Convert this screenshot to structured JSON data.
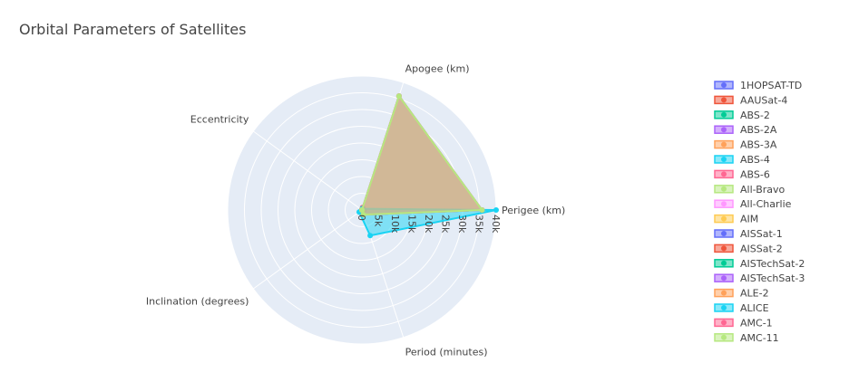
{
  "chart_data": {
    "type": "radar",
    "title": "Orbital Parameters of Satellites",
    "axes": [
      "Perigee (km)",
      "Apogee (km)",
      "Eccentricity",
      "Inclination (degrees)",
      "Period (minutes)"
    ],
    "radial_range": [
      0,
      40000
    ],
    "radial_ticks": [
      0,
      5000,
      10000,
      15000,
      20000,
      25000,
      30000,
      35000,
      40000
    ],
    "radial_tick_labels": [
      "0",
      "5k",
      "10k",
      "15k",
      "20k",
      "25k",
      "30k",
      "35k",
      "40k"
    ],
    "fill": "toself",
    "grid": true,
    "legend_position": "right",
    "series": [
      {
        "name": "1HOPSAT-TD",
        "color": "#636efa",
        "values": [
          700,
          720,
          0.001,
          97,
          98
        ]
      },
      {
        "name": "AAUSat-4",
        "color": "#ef553b",
        "values": [
          450,
          790,
          0.02,
          98,
          97
        ]
      },
      {
        "name": "ABS-2",
        "color": "#00cc96",
        "values": [
          35780,
          35790,
          0.0002,
          0.05,
          1436
        ]
      },
      {
        "name": "ABS-2A",
        "color": "#ab63fa",
        "values": [
          35780,
          35790,
          0.0001,
          0.03,
          1436
        ]
      },
      {
        "name": "ABS-3A",
        "color": "#ffa15a",
        "values": [
          35785,
          35788,
          0.0001,
          0.02,
          1436
        ]
      },
      {
        "name": "ABS-4",
        "color": "#19d3f3",
        "values": [
          35780,
          35790,
          0.0001,
          0.02,
          1436
        ]
      },
      {
        "name": "ABS-6",
        "color": "#ff6692",
        "values": [
          35782,
          35789,
          0.0001,
          0.03,
          1436
        ]
      },
      {
        "name": "All-Bravo",
        "color": "#b6e880",
        "values": [
          35786,
          35788,
          0.0001,
          0.02,
          1436
        ]
      },
      {
        "name": "All-Charlie",
        "color": "#ff97ff",
        "values": [
          35785,
          35787,
          0.0001,
          0.01,
          1436
        ]
      },
      {
        "name": "AIM",
        "color": "#fecb52",
        "values": [
          600,
          650,
          0.003,
          97,
          96
        ]
      },
      {
        "name": "AISSat-1",
        "color": "#636efa",
        "values": [
          620,
          640,
          0.001,
          98,
          97
        ]
      },
      {
        "name": "AISSat-2",
        "color": "#ef553b",
        "values": [
          600,
          620,
          0.001,
          98,
          97
        ]
      },
      {
        "name": "AISTechSat-2",
        "color": "#00cc96",
        "values": [
          500,
          520,
          0.001,
          97,
          95
        ]
      },
      {
        "name": "AISTechSat-3",
        "color": "#ab63fa",
        "values": [
          510,
          530,
          0.001,
          97,
          95
        ]
      },
      {
        "name": "ALE-2",
        "color": "#ffa15a",
        "values": [
          400,
          420,
          0.001,
          97,
          93
        ]
      },
      {
        "name": "ALICE",
        "color": "#19d3f3",
        "values": [
          40000,
          400,
          0.7,
          1000,
          8000
        ]
      },
      {
        "name": "AMC-1",
        "color": "#ff6692",
        "values": [
          35786,
          35787,
          0.0001,
          0.05,
          1436
        ]
      },
      {
        "name": "AMC-11",
        "color": "#b6e880",
        "values": [
          35786,
          35788,
          0.0001,
          0.03,
          1436
        ]
      }
    ]
  }
}
